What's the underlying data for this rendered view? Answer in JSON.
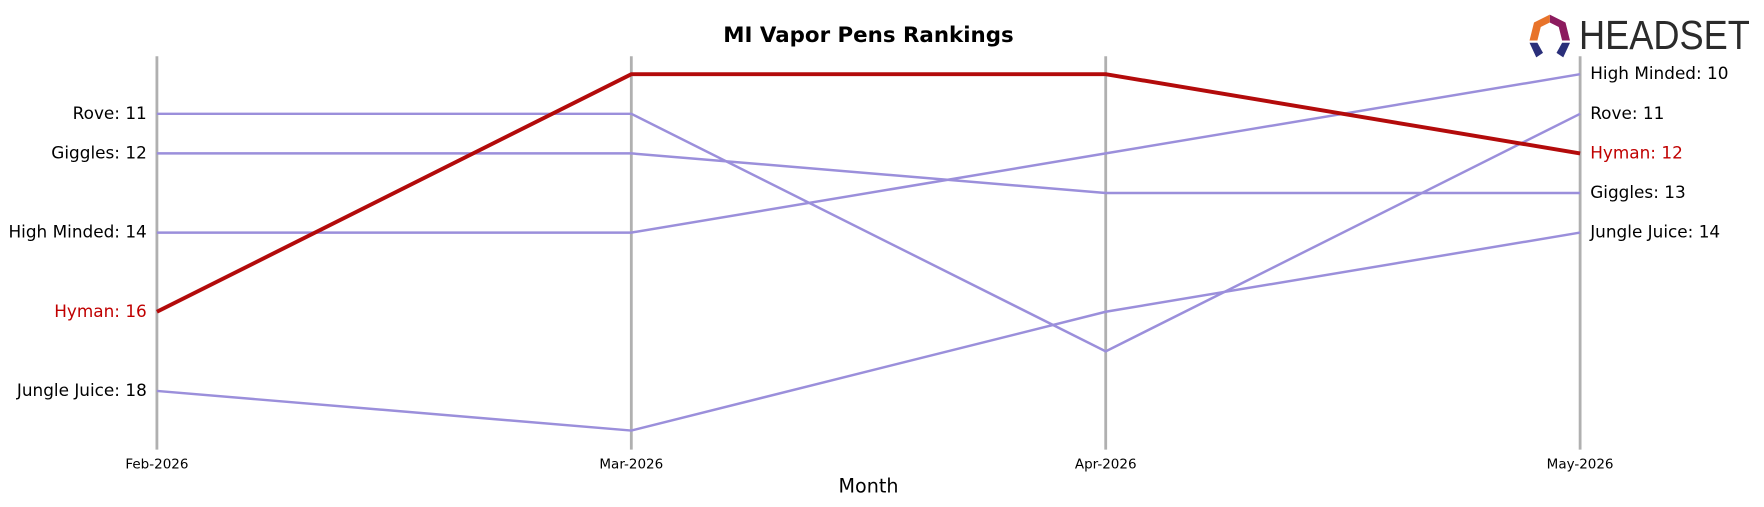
{
  "logo_text": "HEADSET",
  "chart_data": {
    "type": "bump",
    "title": "MI Vapor Pens Rankings",
    "xlabel": "Month",
    "categories": [
      "Feb-2026",
      "Mar-2026",
      "Apr-2026",
      "May-2026"
    ],
    "ylim": [
      19.5,
      9.5
    ],
    "grid": true,
    "series": [
      {
        "name": "Rove",
        "color": "#9b8fdb",
        "label_color": "#000000",
        "values": [
          11,
          11,
          17,
          11
        ],
        "value_labels": [
          "Rove: 11",
          null,
          null,
          "Rove: 11"
        ]
      },
      {
        "name": "Giggles",
        "color": "#9b8fdb",
        "label_color": "#000000",
        "values": [
          12,
          12,
          13,
          13
        ],
        "value_labels": [
          "Giggles: 12",
          null,
          null,
          "Giggles: 13"
        ]
      },
      {
        "name": "High Minded",
        "color": "#9b8fdb",
        "label_color": "#000000",
        "values": [
          14,
          14,
          12,
          10
        ],
        "value_labels": [
          "High Minded: 14",
          null,
          null,
          "High Minded: 10"
        ]
      },
      {
        "name": "Jungle Juice",
        "color": "#9b8fdb",
        "label_color": "#000000",
        "values": [
          18,
          19,
          16,
          14
        ],
        "value_labels": [
          "Jungle Juice: 18",
          null,
          null,
          "Jungle Juice: 14"
        ]
      },
      {
        "name": "Hyman",
        "color": "#b30b0b",
        "label_color": "#c00000",
        "values": [
          16,
          10,
          10,
          12
        ],
        "value_labels": [
          "Hyman: 16",
          null,
          null,
          "Hyman: 12"
        ]
      }
    ]
  }
}
